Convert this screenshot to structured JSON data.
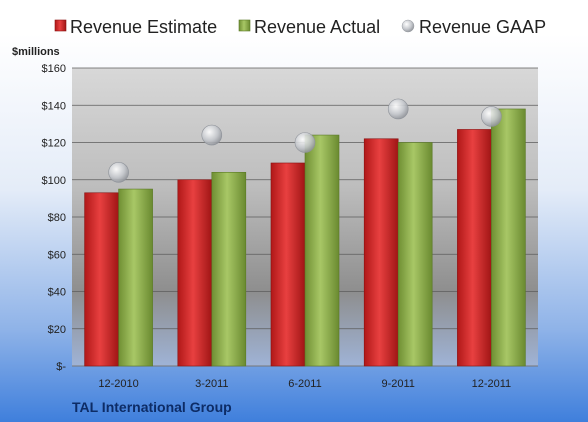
{
  "chart_data": {
    "type": "bar",
    "title": "",
    "company": "TAL International Group",
    "unit_label": "$millions",
    "categories": [
      "12-2010",
      "3-2011",
      "6-2011",
      "9-2011",
      "12-2011"
    ],
    "series": [
      {
        "name": "Revenue Estimate",
        "kind": "bar",
        "color": "#d42a2a",
        "values": [
          93,
          100,
          109,
          122,
          127
        ]
      },
      {
        "name": "Revenue Actual",
        "kind": "bar",
        "color": "#8fb04a",
        "values": [
          95,
          104,
          124,
          120,
          138
        ]
      },
      {
        "name": "Revenue GAAP",
        "kind": "marker",
        "color": "#b9bdc4",
        "values": [
          104,
          124,
          120,
          138,
          134
        ]
      }
    ],
    "ylim": [
      0,
      160
    ],
    "yticks": [
      0,
      20,
      40,
      60,
      80,
      100,
      120,
      140,
      160
    ],
    "ytick_labels": [
      "$-",
      "$20",
      "$40",
      "$60",
      "$80",
      "$100",
      "$120",
      "$140",
      "$160"
    ],
    "grid": true,
    "legend_position": "top"
  }
}
